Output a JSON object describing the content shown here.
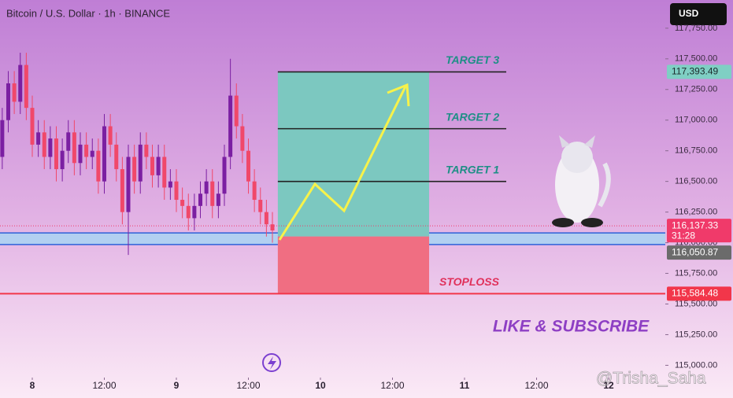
{
  "header": {
    "title": "Bitcoin / U.S. Dollar · 1h · BINANCE",
    "currency": "USD"
  },
  "chart_data": {
    "type": "candlestick",
    "x": [
      -5,
      -4,
      -3,
      -2,
      -1,
      0,
      1,
      2,
      3,
      4,
      5,
      6,
      7,
      8,
      9,
      10,
      11,
      12,
      13,
      14,
      15,
      16,
      17,
      18,
      19,
      20,
      21,
      22,
      23,
      24,
      25,
      26,
      27,
      28,
      29,
      30,
      31,
      32,
      33,
      34,
      35,
      36,
      37,
      38,
      39,
      40
    ],
    "open": [
      116700,
      117000,
      117300,
      117150,
      117450,
      117100,
      116800,
      116900,
      116700,
      116850,
      116600,
      116750,
      116900,
      116650,
      116800,
      116700,
      116750,
      116500,
      116950,
      116800,
      116600,
      116250,
      116700,
      116500,
      116800,
      116700,
      116550,
      116700,
      116450,
      116500,
      116350,
      116300,
      116200,
      116300,
      116400,
      116500,
      116300,
      116400,
      116700,
      117200,
      116950,
      116750,
      116500,
      116350,
      116250,
      116150
    ],
    "high": [
      117100,
      117400,
      117400,
      117550,
      117550,
      117200,
      117000,
      117000,
      116950,
      116950,
      116850,
      117000,
      117000,
      116900,
      116900,
      116850,
      116850,
      117050,
      117050,
      116900,
      116700,
      116800,
      116800,
      116900,
      116900,
      116800,
      116800,
      116800,
      116600,
      116600,
      116450,
      116400,
      116400,
      116500,
      116600,
      116600,
      116500,
      116800,
      117500,
      117300,
      117050,
      116850,
      116600,
      116450,
      116350,
      116250
    ],
    "low": [
      116600,
      116900,
      117050,
      117050,
      117000,
      116700,
      116700,
      116600,
      116600,
      116500,
      116500,
      116650,
      116550,
      116550,
      116600,
      116600,
      116400,
      116400,
      116700,
      116500,
      116150,
      115900,
      116400,
      116400,
      116600,
      116450,
      116450,
      116350,
      116350,
      116250,
      116200,
      116100,
      116100,
      116200,
      116300,
      116200,
      116200,
      116300,
      116600,
      116850,
      116650,
      116400,
      116250,
      116150,
      116050,
      116000
    ],
    "close": [
      117000,
      117300,
      117150,
      117450,
      117100,
      116800,
      116900,
      116700,
      116850,
      116600,
      116750,
      116900,
      116650,
      116800,
      116700,
      116750,
      116500,
      116950,
      116800,
      116600,
      116250,
      116700,
      116500,
      116800,
      116700,
      116550,
      116700,
      116450,
      116500,
      116350,
      116300,
      116200,
      116300,
      116400,
      116500,
      116300,
      116400,
      116700,
      117200,
      116950,
      116750,
      116500,
      116350,
      116250,
      116150,
      116100
    ],
    "up_color": "#7b1fa2",
    "down_color": "#f0486a",
    "xlim": [
      -5.377,
      105.44
    ],
    "xticks": [
      {
        "value": 0,
        "label": "8"
      },
      {
        "value": 12,
        "label": "12:00"
      },
      {
        "value": 24,
        "label": "9"
      },
      {
        "value": 36,
        "label": "12:00"
      },
      {
        "value": 48,
        "label": "10"
      },
      {
        "value": 60,
        "label": "12:00"
      },
      {
        "value": 72,
        "label": "11"
      },
      {
        "value": 84,
        "label": "12:00"
      },
      {
        "value": 96,
        "label": "12"
      }
    ],
    "ylim": [
      114900,
      117980
    ],
    "yticks": [
      {
        "value": 115000,
        "label": "115,000.00"
      },
      {
        "value": 115250,
        "label": "115,250.00"
      },
      {
        "value": 115500,
        "label": "115,500.00"
      },
      {
        "value": 115750,
        "label": "115,750.00"
      },
      {
        "value": 116000,
        "label": "116,000.00"
      },
      {
        "value": 116250,
        "label": "116,250.00"
      },
      {
        "value": 116500,
        "label": "116,500.00"
      },
      {
        "value": 116750,
        "label": "116,750.00"
      },
      {
        "value": 117000,
        "label": "117,000.00"
      },
      {
        "value": 117250,
        "label": "117,250.00"
      },
      {
        "value": 117500,
        "label": "117,500.00"
      },
      {
        "value": 117750,
        "label": "117,750.00"
      }
    ],
    "position": {
      "start": 40.9,
      "end": 66.1,
      "entry": 116050.87,
      "target": 117393.49,
      "stop": 115584.48
    },
    "zone": [
      115985,
      116080
    ],
    "levels": [
      {
        "label": "TARGET 3",
        "value": 117393.49
      },
      {
        "label": "TARGET 2",
        "value": 116930
      },
      {
        "label": "TARGET 1",
        "value": 116500
      },
      {
        "label": "STOPLOSS",
        "value": 115584.48
      }
    ],
    "price_labels": [
      {
        "value": 117393.49,
        "label": "117,393.49",
        "color": "#7fcfc4"
      },
      {
        "value": 116137.33,
        "label": "116,137.33",
        "sublabel": "31:28",
        "color": "#f03a6a"
      },
      {
        "value": 116050.87,
        "label": "116,050.87",
        "color": "#6b6b6b"
      },
      {
        "value": 115584.48,
        "label": "115,584.48",
        "color": "#f2364a"
      }
    ],
    "annotation": "LIKE & SUBSCRIBE",
    "watermark": "@Trisha_Saha"
  }
}
